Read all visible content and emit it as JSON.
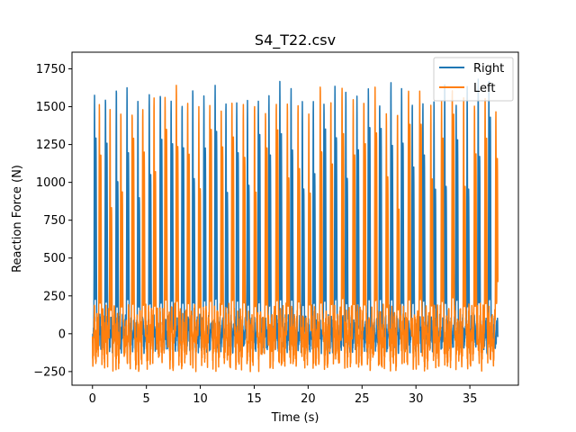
{
  "chart_data": {
    "type": "line",
    "title": "S4_T22.csv",
    "xlabel": "Time (s)",
    "ylabel": "Reaction Force (N)",
    "xlim": [
      -1.9,
      39.5
    ],
    "ylim": [
      -340,
      1860
    ],
    "xticks": [
      0,
      5,
      10,
      15,
      20,
      25,
      30,
      35
    ],
    "yticks": [
      -250,
      0,
      250,
      500,
      750,
      1000,
      1250,
      1500,
      1750
    ],
    "grid": false,
    "legend": {
      "placement": "top-right"
    },
    "series": [
      {
        "name": "Right",
        "color": "#1f77b4",
        "x_range": [
          0,
          37.6
        ],
        "step_period_s": 1.02,
        "first_step_s": 0.1,
        "peak_force_range": [
          1520,
          1700
        ],
        "baseline_range": [
          -120,
          120
        ]
      },
      {
        "name": "Left",
        "color": "#ff7f0e",
        "x_range": [
          0,
          37.6
        ],
        "step_period_s": 1.02,
        "first_step_s": 0.55,
        "peak_force_range": [
          1450,
          1680
        ],
        "baseline_range": [
          -230,
          180
        ]
      }
    ]
  }
}
